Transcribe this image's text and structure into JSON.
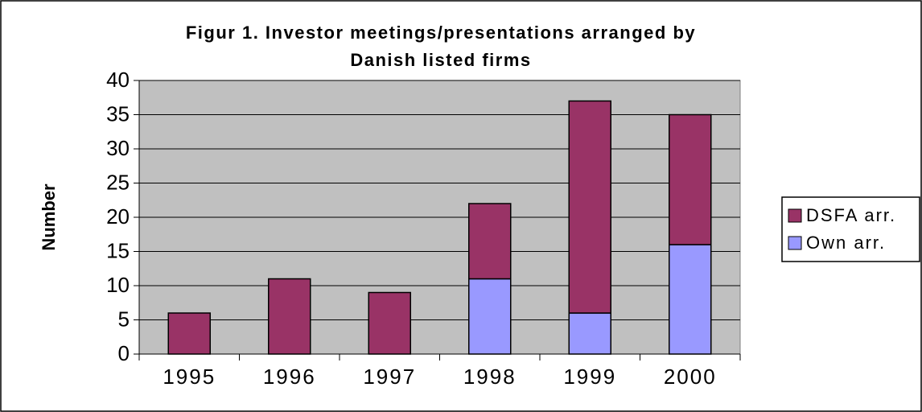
{
  "chart_data": {
    "type": "stacked_bar",
    "title": [
      "Figur 1. Investor meetings/presentations arranged by",
      "Danish listed firms"
    ],
    "ylabel": "Number",
    "categories": [
      "1995",
      "1996",
      "1997",
      "1998",
      "1999",
      "2000"
    ],
    "series": [
      {
        "name": "Own arr.",
        "color": "#9999ff",
        "values": [
          0,
          0,
          0,
          11,
          6,
          16
        ]
      },
      {
        "name": "DSFA arr.",
        "color": "#993366",
        "values": [
          6,
          11,
          9,
          11,
          31,
          19
        ]
      }
    ],
    "ylim": [
      0,
      40
    ],
    "yticks": [
      0,
      5,
      10,
      15,
      20,
      25,
      30,
      35,
      40
    ],
    "grid": true,
    "legend": "right",
    "plot_background": "#c0c0c0"
  }
}
